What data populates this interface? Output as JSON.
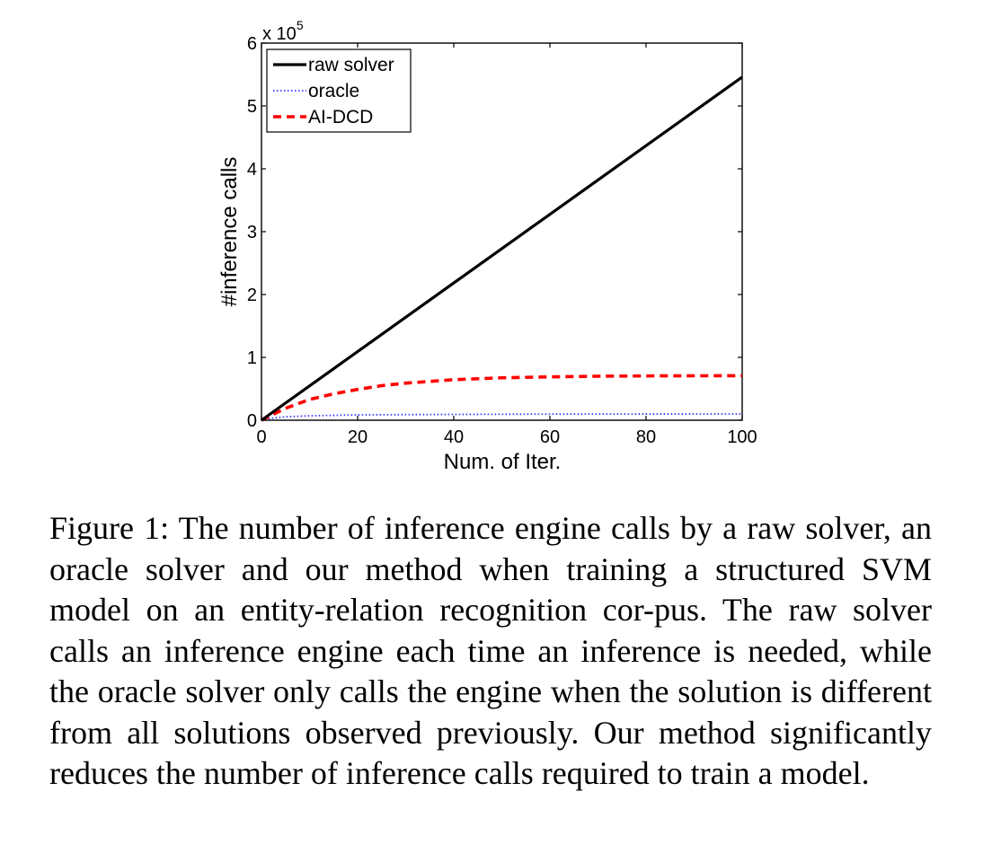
{
  "chart_data": {
    "type": "line",
    "xlabel": "Num. of Iter.",
    "ylabel": "#inference calls",
    "y_multiplier": "x 10",
    "y_multiplier_exponent": "5",
    "xlim": [
      0,
      100
    ],
    "ylim": [
      0,
      600000
    ],
    "xticks": [
      0,
      20,
      40,
      60,
      80,
      100
    ],
    "yticks": [
      0,
      100000,
      200000,
      300000,
      400000,
      500000,
      600000
    ],
    "ytick_labels": [
      "0",
      "1",
      "2",
      "3",
      "4",
      "5",
      "6"
    ],
    "grid": false,
    "legend_position": "top-left",
    "series": [
      {
        "name": "raw solver",
        "color": "#000000",
        "style": "solid",
        "x": [
          0,
          100
        ],
        "y": [
          0,
          546000
        ]
      },
      {
        "name": "oracle",
        "color": "#3333ff",
        "style": "dotted",
        "x": [
          0,
          2,
          5,
          10,
          20,
          40,
          60,
          80,
          100
        ],
        "y": [
          0,
          3000,
          5500,
          7000,
          8500,
          9300,
          9700,
          9900,
          10000
        ]
      },
      {
        "name": "AI-DCD",
        "color": "#ff0000",
        "style": "dashed",
        "x": [
          0,
          5,
          10,
          15,
          20,
          25,
          30,
          40,
          50,
          60,
          70,
          80,
          90,
          100
        ],
        "y": [
          0,
          19000,
          33000,
          42000,
          49000,
          55000,
          59000,
          64500,
          67500,
          69000,
          70000,
          70500,
          70700,
          70800
        ]
      }
    ]
  },
  "caption": "Figure 1: The number of inference engine calls by a raw solver, an oracle solver and our method when training a structured SVM model on an entity-relation recognition cor-pus. The raw solver calls an inference engine each time an inference is needed, while the oracle solver only calls the engine when the solution is different from all solutions observed previously. Our method significantly reduces the number of inference calls required to train a model."
}
